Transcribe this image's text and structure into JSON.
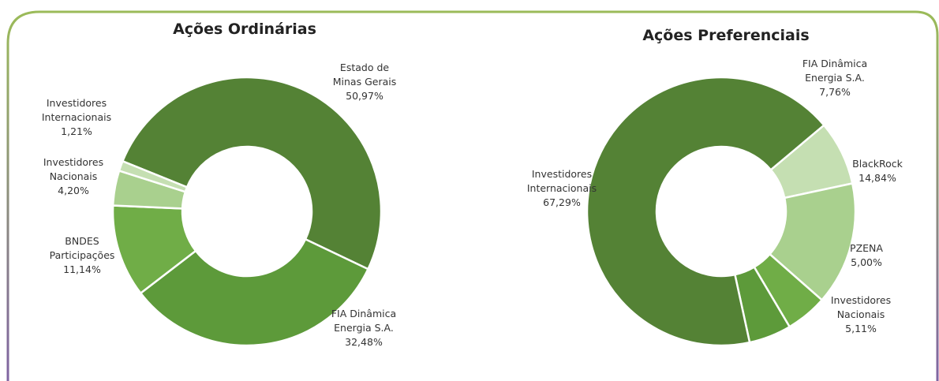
{
  "chart_data": [
    {
      "type": "pie",
      "donut": true,
      "title": "Ações Ordinárias",
      "categories": [
        "Estado de Minas Gerais",
        "FIA Dinâmica Energia S.A.",
        "BNDES Participações",
        "Investidores Nacionais",
        "Investidores Internacionais"
      ],
      "values": [
        50.97,
        32.48,
        11.14,
        4.2,
        1.21
      ],
      "labels": [
        [
          "Estado de",
          "Minas Gerais",
          "50,97%"
        ],
        [
          "FIA Dinâmica",
          "Energia S.A.",
          "32,48%"
        ],
        [
          "BNDES",
          "Participações",
          "11,14%"
        ],
        [
          "Investidores",
          "Nacionais",
          "4,20%"
        ],
        [
          "Investidores",
          "Internacionais",
          "1,21%"
        ]
      ],
      "colors": [
        "#548235",
        "#5d9a3a",
        "#70ad47",
        "#a9d08e",
        "#c5dfb2"
      ]
    },
    {
      "type": "pie",
      "donut": true,
      "title": "Ações Preferenciais",
      "categories": [
        "FIA Dinâmica Energia S.A.",
        "BlackRock",
        "PZENA",
        "Investidores Nacionais",
        "Investidores Internacionais"
      ],
      "values": [
        7.76,
        14.84,
        5.0,
        5.11,
        67.29
      ],
      "labels": [
        [
          "FIA Dinâmica",
          "Energia S.A.",
          "7,76%"
        ],
        [
          "BlackRock",
          "14,84%"
        ],
        [
          "PZENA",
          "5,00%"
        ],
        [
          "Investidores",
          "Nacionais",
          "5,11%"
        ],
        [
          "Investidores",
          "Internacionais",
          "67,29%"
        ]
      ],
      "colors": [
        "#c5dfb2",
        "#a9d08e",
        "#70ad47",
        "#5d9a3a",
        "#548235"
      ]
    }
  ],
  "frame": {
    "border_top": "#9bbb59",
    "border_bottom": "#8064a2"
  }
}
